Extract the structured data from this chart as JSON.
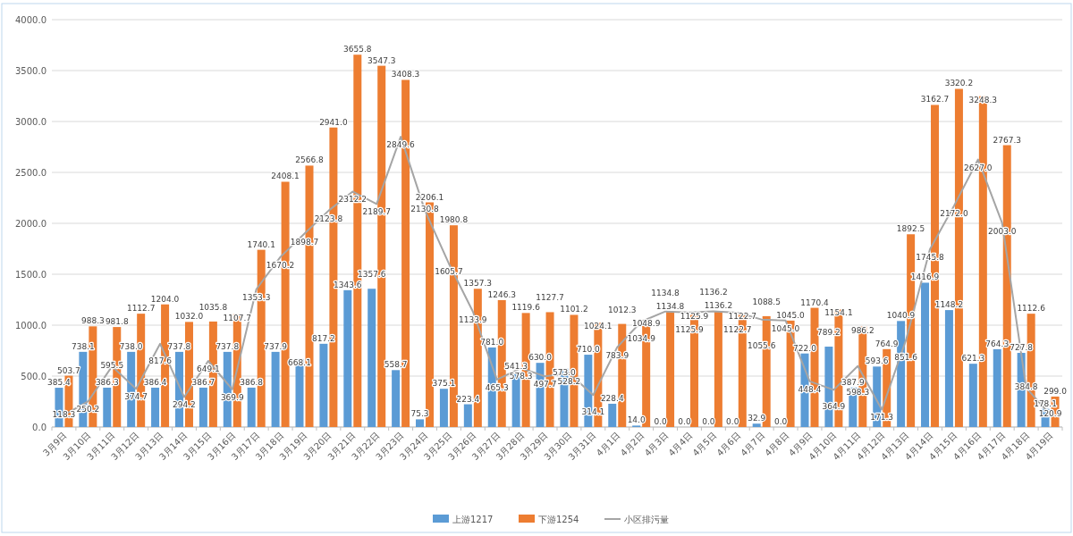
{
  "chart_data": {
    "type": "bar",
    "categories": [
      "3月9日",
      "3月10日",
      "3月11日",
      "3月12日",
      "3月13日",
      "3月14日",
      "3月15日",
      "3月16日",
      "3月17日",
      "3月18日",
      "3月19日",
      "3月20日",
      "3月21日",
      "3月22日",
      "3月23日",
      "3月24日",
      "3月25日",
      "3月26日",
      "3月27日",
      "3月28日",
      "3月29日",
      "3月30日",
      "3月31日",
      "4月1日",
      "4月2日",
      "4月3日",
      "4月4日",
      "4月5日",
      "4月6日",
      "4月7日",
      "4月8日",
      "4月9日",
      "4月10日",
      "4月11日",
      "4月12日",
      "4月13日",
      "4月14日",
      "4月15日",
      "4月16日",
      "4月17日",
      "4月18日",
      "4月19日"
    ],
    "series": [
      {
        "name": "上游1217",
        "color": "#5b9bd5",
        "values": [
          385.4,
          738.1,
          386.3,
          738.0,
          386.4,
          737.8,
          386.7,
          737.8,
          386.8,
          737.9,
          668.1,
          817.2,
          1343.6,
          1357.6,
          558.7,
          75.3,
          375.1,
          223.4,
          781.0,
          541.3,
          630.0,
          573.0,
          710.0,
          228.4,
          14.0,
          0.0,
          0.0,
          0.0,
          0.0,
          32.9,
          0.0,
          722.0,
          789.2,
          387.9,
          593.6,
          1040.9,
          1416.9,
          1148.2,
          621.3,
          764.3,
          727.8,
          178.1
        ],
        "value_labels": [
          "385.4",
          "738.1",
          "386.3",
          "738.0",
          "386.4",
          "737.8",
          "386.7",
          "737.8",
          "386.8",
          "737.9",
          "668.1",
          "817.2",
          "1343.6",
          "1357.6",
          "558.7",
          "75.3",
          "375.1",
          "223.4",
          "781.0",
          "541.3",
          "630.0",
          "573.0",
          "710.0",
          "228.4",
          "14.0",
          "0.0",
          "0.0",
          "0.0",
          "0.0",
          "32.9",
          "0.0",
          "722.0",
          "789.2",
          "387.9",
          "593.6",
          "1040.9",
          "1416.9",
          "1148.2",
          "621.3",
          "764.3",
          "727.8",
          "178.1"
        ]
      },
      {
        "name": "下游1254",
        "color": "#ed7d31",
        "values": [
          503.7,
          988.3,
          981.8,
          1112.7,
          1204.0,
          1032.0,
          1035.8,
          1107.7,
          1740.1,
          2408.1,
          2566.8,
          2941.0,
          3655.8,
          3547.3,
          3408.3,
          2206.1,
          1980.8,
          1357.3,
          1246.3,
          1119.6,
          1127.7,
          1101.2,
          1024.1,
          1012.3,
          1048.9,
          1134.8,
          1125.9,
          1136.2,
          1122.7,
          1088.5,
          1045.0,
          1170.4,
          1154.1,
          986.2,
          764.9,
          1892.5,
          3162.7,
          3320.2,
          3248.3,
          2767.3,
          1112.6,
          299.0
        ],
        "value_labels": [
          "503.7",
          "988.3",
          "981.8",
          "1112.7",
          "1204.0",
          "1032.0",
          "1035.8",
          "1107.7",
          "1740.1",
          "2408.1",
          "2566.8",
          "2941.0",
          "3655.8",
          "3547.3",
          "3408.3",
          "2206.1",
          "1980.8",
          "1357.3",
          "1246.3",
          "1119.6",
          "1127.7",
          "1101.2",
          "1024.1",
          "1012.3",
          "1048.9",
          "1134.8",
          "1125.9",
          "1136.2",
          "1122.7",
          "1088.5",
          "1045.0",
          "1170.4",
          "1154.1",
          "986.2",
          "764.9",
          "1892.5",
          "3162.7",
          "3320.2",
          "3248.3",
          "2767.3",
          "1112.6",
          "299.0"
        ]
      },
      {
        "name": "小区排污量",
        "type": "line",
        "color": "#a5a5a5",
        "values": [
          118.3,
          250.2,
          595.5,
          374.7,
          817.6,
          294.2,
          649.1,
          369.9,
          1353.3,
          1670.2,
          1898.7,
          2123.8,
          2312.2,
          2189.7,
          2849.6,
          2130.8,
          1605.7,
          1133.9,
          465.3,
          578.3,
          497.7,
          528.2,
          314.1,
          783.9,
          1034.9,
          1134.8,
          1125.9,
          1136.2,
          1122.7,
          1055.6,
          1045.0,
          448.4,
          364.9,
          598.3,
          171.3,
          851.6,
          1745.8,
          2172.0,
          2627.0,
          2003.0,
          384.8,
          120.9
        ],
        "value_labels": [
          "118.3",
          "250.2",
          "595.5",
          "374.7",
          "817.6",
          "294.2",
          "649.1",
          "369.9",
          "1353.3",
          "1670.2",
          "1898.7",
          "2123.8",
          "2312.2",
          "2189.7",
          "2849.6",
          "2130.8",
          "1605.7",
          "1133.9",
          "465.3",
          "578.3",
          "497.7",
          "528.2",
          "314.1",
          "783.9",
          "1034.9",
          "1134.8",
          "1125.9",
          "1136.2",
          "1122.7",
          "1055.6",
          "1045.0",
          "448.4",
          "364.9",
          "598.3",
          "171.3",
          "851.6",
          "1745.8",
          "2172.0",
          "2627.0",
          "2003.0",
          "384.8",
          "120.9"
        ]
      }
    ],
    "ylim": [
      0,
      4000
    ],
    "yticks": [
      {
        "value": 0,
        "label": "0.0"
      },
      {
        "value": 500,
        "label": "500.0"
      },
      {
        "value": 1000,
        "label": "1000.0"
      },
      {
        "value": 1500,
        "label": "1500.0"
      },
      {
        "value": 2000,
        "label": "2000.0"
      },
      {
        "value": 2500,
        "label": "2500.0"
      },
      {
        "value": 3000,
        "label": "3000.0"
      },
      {
        "value": 3500,
        "label": "3500.0"
      },
      {
        "value": 4000,
        "label": "4000.0"
      }
    ],
    "grid": "y",
    "legend": "bottom"
  }
}
